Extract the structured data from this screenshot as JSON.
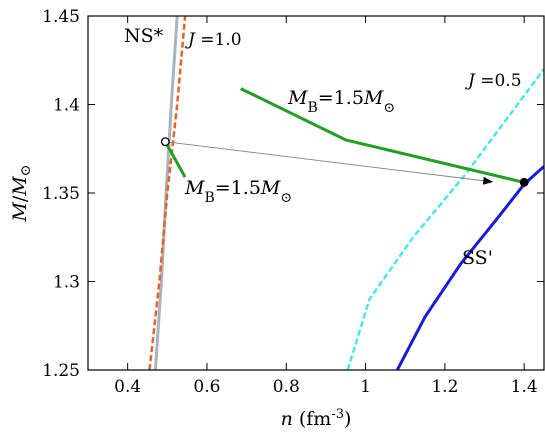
{
  "chart_data": {
    "type": "line",
    "title": "",
    "xlabel": {
      "var": "n",
      "unit": " (fm",
      "exp": "-3",
      "close": ")"
    },
    "ylabel": {
      "var": "M",
      "slash": "/",
      "sub": "M",
      "sun": "⊙"
    },
    "xlim": [
      0.3,
      1.45
    ],
    "ylim": [
      1.25,
      1.45
    ],
    "xticks": [
      0.4,
      0.6,
      0.8,
      1.0,
      1.2,
      1.4
    ],
    "xtick_labels": [
      "0.4",
      "0.6",
      "0.8",
      "1",
      "1.2",
      "1.4"
    ],
    "yticks": [
      1.25,
      1.3,
      1.35,
      1.4,
      1.45
    ],
    "ytick_labels": [
      "1.25",
      "1.3",
      "1.35",
      "1.4",
      "1.45"
    ],
    "grid": false,
    "series": [
      {
        "name": "NS*",
        "color": "#a8b4bf",
        "style": "solid",
        "width": 3,
        "points": [
          [
            0.47,
            1.25
          ],
          [
            0.485,
            1.3
          ],
          [
            0.497,
            1.35
          ],
          [
            0.51,
            1.4
          ],
          [
            0.525,
            1.45
          ]
        ]
      },
      {
        "name": "J =1.0",
        "color": "#e8602a",
        "style": "dashed",
        "width": 2.5,
        "points": [
          [
            0.455,
            1.25
          ],
          [
            0.48,
            1.3
          ],
          [
            0.5,
            1.35
          ],
          [
            0.525,
            1.4
          ],
          [
            0.545,
            1.45
          ]
        ]
      },
      {
        "name": "J =0.5",
        "color": "#4ae6f0",
        "style": "dashed",
        "width": 2.5,
        "points": [
          [
            0.955,
            1.25
          ],
          [
            1.01,
            1.29
          ],
          [
            1.12,
            1.325
          ],
          [
            1.25,
            1.36
          ],
          [
            1.35,
            1.39
          ],
          [
            1.45,
            1.42
          ]
        ]
      },
      {
        "name": "SS'",
        "color": "#1a1ad8",
        "style": "solid",
        "width": 3,
        "points": [
          [
            1.08,
            1.25
          ],
          [
            1.15,
            1.28
          ],
          [
            1.24,
            1.31
          ],
          [
            1.33,
            1.335
          ],
          [
            1.4,
            1.355
          ],
          [
            1.45,
            1.365
          ]
        ]
      },
      {
        "name": "M_B=1.5M_sun (hybrid)",
        "color": "#20a020",
        "style": "solid",
        "width": 3,
        "points": [
          [
            0.685,
            1.409
          ],
          [
            0.95,
            1.38
          ],
          [
            1.4,
            1.356
          ]
        ]
      },
      {
        "name": "M_B=1.5M_sun (NS)",
        "color": "#20a020",
        "style": "solid",
        "width": 3,
        "points": [
          [
            0.495,
            1.379
          ],
          [
            0.545,
            1.359
          ]
        ]
      }
    ],
    "arrow": {
      "from": [
        0.495,
        1.379
      ],
      "to": [
        1.4,
        1.356
      ],
      "color": "#808080"
    },
    "markers": [
      {
        "name": "open-circle",
        "x": 0.495,
        "y": 1.379,
        "fill": "#ffffff"
      },
      {
        "name": "filled-circle",
        "x": 1.4,
        "y": 1.356,
        "fill": "#000000"
      }
    ],
    "annotations": {
      "ns": "NS*",
      "j10": {
        "var": "J",
        "val": " =1.0"
      },
      "j05": {
        "var": "J",
        "val": " =0.5"
      },
      "ss": "SS'",
      "mb_upper": {
        "var": "M",
        "sub": "B",
        "val": "=1.5",
        "var2": "M",
        "sun": "⊙"
      },
      "mb_lower": {
        "var": "M",
        "sub": "B",
        "val": "=1.5",
        "var2": "M",
        "sun": "⊙"
      }
    }
  }
}
